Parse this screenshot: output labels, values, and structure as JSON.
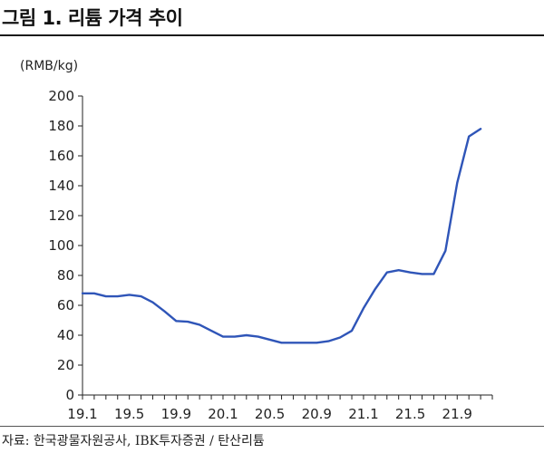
{
  "header": {
    "title": "그림 1. 리튬 가격 추이"
  },
  "footer": {
    "source": "자료: 한국광물자원공사, IBK투자증권 / 탄산리튬"
  },
  "chart_data": {
    "type": "line",
    "title": "그림 1. 리튬 가격 추이",
    "ylabel": "(RMB/kg)",
    "xlabel": "",
    "ylim": [
      0,
      200
    ],
    "yticks": [
      0,
      20,
      40,
      60,
      80,
      100,
      120,
      140,
      160,
      180,
      200
    ],
    "grid": false,
    "legend": "none",
    "color": "#2f55b8",
    "x_tick_labels": [
      "19.1",
      "19.5",
      "19.9",
      "20.1",
      "20.5",
      "20.9",
      "21.1",
      "21.5",
      "21.9"
    ],
    "series": [
      {
        "x": [
          "19.1",
          "19.2",
          "19.3",
          "19.4",
          "19.5",
          "19.6",
          "19.7",
          "19.8",
          "19.9",
          "19.10",
          "19.11",
          "19.12",
          "20.1",
          "20.2",
          "20.3",
          "20.4",
          "20.5",
          "20.6",
          "20.7",
          "20.8",
          "20.9",
          "20.10",
          "20.11",
          "20.12",
          "21.1",
          "21.2",
          "21.3",
          "21.4",
          "21.5",
          "21.6",
          "21.7",
          "21.8",
          "21.9",
          "21.10",
          "21.11"
        ],
        "values": [
          68,
          68,
          66,
          66,
          67,
          66,
          62,
          56,
          49.5,
          49,
          47,
          43,
          39,
          39,
          40,
          39,
          37,
          35,
          35,
          35,
          35,
          36,
          38.5,
          43,
          58,
          71,
          82,
          83.5,
          82,
          81,
          81,
          96.5,
          142,
          173,
          178
        ]
      }
    ]
  }
}
